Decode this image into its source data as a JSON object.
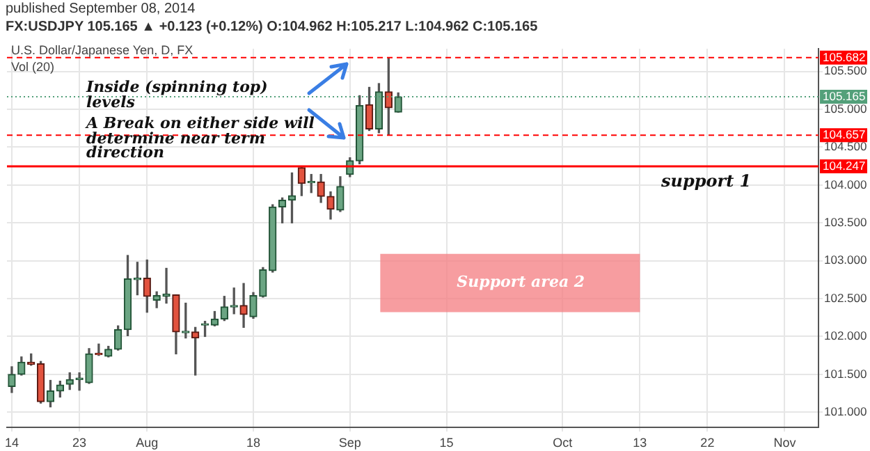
{
  "chart_data": {
    "type": "candlestick",
    "title": "FX:USDJPY 105.165 ▲ +0.123 (+0.12%) O:104.962 H:105.217 L:104.962 C:105.165",
    "subtitle": "published September 08, 2014",
    "categories": [
      "14",
      null,
      null,
      null,
      null,
      null,
      null,
      "23",
      null,
      null,
      null,
      null,
      null,
      null,
      "Aug",
      null,
      null,
      null,
      null,
      null,
      null,
      null,
      null,
      null,
      null,
      "18",
      null,
      null,
      null,
      null,
      null,
      null,
      null,
      null,
      null,
      "Sep",
      null,
      null,
      null,
      null,
      null,
      null,
      null,
      null,
      null,
      "15",
      null,
      null,
      null,
      null,
      null,
      null,
      null,
      null,
      null,
      null,
      null,
      "Oct",
      null,
      null,
      null,
      null,
      null,
      null,
      null,
      "13",
      null,
      null,
      null,
      null,
      null,
      null,
      "22",
      null,
      null,
      null,
      null,
      null,
      null,
      null,
      "Nov",
      null,
      null,
      null
    ],
    "ohlc": [
      [
        101.34,
        101.6,
        101.26,
        101.5
      ],
      [
        101.5,
        101.73,
        101.49,
        101.66
      ],
      [
        101.66,
        101.77,
        101.62,
        101.63
      ],
      [
        101.64,
        101.67,
        101.12,
        101.14
      ],
      [
        101.14,
        101.42,
        101.07,
        101.28
      ],
      [
        101.28,
        101.41,
        101.2,
        101.36
      ],
      [
        101.37,
        101.52,
        101.3,
        101.43
      ],
      [
        101.43,
        101.52,
        101.29,
        101.45
      ],
      [
        101.39,
        101.84,
        101.38,
        101.77
      ],
      [
        101.77,
        101.9,
        101.75,
        101.76
      ],
      [
        101.74,
        101.87,
        101.73,
        101.83
      ],
      [
        101.83,
        102.14,
        101.82,
        102.09
      ],
      [
        102.09,
        103.07,
        102.01,
        102.76
      ],
      [
        102.75,
        102.98,
        102.55,
        102.77
      ],
      [
        102.77,
        103.01,
        102.32,
        102.53
      ],
      [
        102.48,
        102.59,
        102.38,
        102.54
      ],
      [
        102.53,
        102.9,
        102.44,
        102.56
      ],
      [
        102.55,
        102.55,
        101.77,
        102.06
      ],
      [
        102.05,
        102.44,
        101.98,
        102.06
      ],
      [
        102.06,
        102.12,
        101.49,
        101.98
      ],
      [
        102.15,
        102.2,
        102.0,
        102.16
      ],
      [
        102.15,
        102.33,
        102.14,
        102.23
      ],
      [
        102.23,
        102.53,
        102.21,
        102.39
      ],
      [
        102.39,
        102.64,
        102.3,
        102.41
      ],
      [
        102.41,
        102.7,
        102.12,
        102.29
      ],
      [
        102.26,
        102.58,
        102.24,
        102.54
      ],
      [
        102.53,
        102.91,
        102.52,
        102.88
      ],
      [
        102.87,
        103.74,
        102.85,
        103.71
      ],
      [
        103.71,
        103.83,
        103.5,
        103.8
      ],
      [
        103.8,
        104.16,
        103.5,
        103.86
      ],
      [
        104.23,
        104.25,
        103.86,
        104.02
      ],
      [
        104.03,
        104.14,
        103.9,
        104.03
      ],
      [
        104.04,
        104.14,
        103.77,
        103.85
      ],
      [
        103.85,
        103.91,
        103.55,
        103.68
      ],
      [
        103.67,
        104.11,
        103.65,
        103.98
      ],
      [
        104.14,
        104.36,
        104.11,
        104.32
      ],
      [
        104.32,
        105.18,
        104.28,
        105.05
      ],
      [
        105.06,
        105.29,
        104.72,
        104.74
      ],
      [
        104.74,
        105.34,
        104.69,
        105.23
      ],
      [
        105.23,
        105.682,
        104.657,
        105.02
      ],
      [
        104.962,
        105.217,
        104.962,
        105.165
      ],
      null,
      null,
      null,
      null,
      null,
      null,
      null,
      null,
      null,
      null,
      null,
      null,
      null,
      null,
      null,
      null,
      null,
      null,
      null,
      null,
      null,
      null,
      null,
      null,
      null,
      null,
      null,
      null,
      null,
      null,
      null,
      null,
      null,
      null,
      null,
      null,
      null,
      null,
      null,
      null,
      null,
      null,
      null
    ],
    "ylim": [
      100.8,
      105.8
    ],
    "yticks": [
      {
        "value": 101,
        "label": "101.000"
      },
      {
        "value": 101.5,
        "label": "101.500"
      },
      {
        "value": 102,
        "label": "102.000"
      },
      {
        "value": 102.5,
        "label": "102.500"
      },
      {
        "value": 103,
        "label": "103.000"
      },
      {
        "value": 103.5,
        "label": "103.500"
      },
      {
        "value": 104,
        "label": "104.000"
      },
      {
        "value": 104.5,
        "label": "104.500"
      },
      {
        "value": 105,
        "label": "105.000"
      },
      {
        "value": 105.5,
        "label": "105.500"
      }
    ],
    "grid": true,
    "ref_lines": [
      {
        "axis": "y",
        "value": 105.682,
        "color": "#ff0000",
        "line_style": "dashed",
        "label": "105.682"
      },
      {
        "axis": "y",
        "value": 105.165,
        "color": "#53a07a",
        "line_style": "dotted",
        "label": "105.165"
      },
      {
        "axis": "y",
        "value": 104.657,
        "color": "#ff0000",
        "line_style": "dashed",
        "label": "104.657"
      },
      {
        "axis": "y",
        "value": 104.247,
        "color": "#ff0000",
        "line_style": "solid",
        "label": "104.247"
      }
    ],
    "bands": [
      {
        "axis": "y",
        "from": 102.32,
        "to": 103.09,
        "label": "Support area 2",
        "color": "#f47c80"
      }
    ],
    "annotations": [
      "U.S. Dollar/Japanese Yen, D, FX",
      "Vol (20)",
      "Inside (spinning top) levels",
      "A Break on either side will determine near term direction",
      "support 1"
    ]
  }
}
